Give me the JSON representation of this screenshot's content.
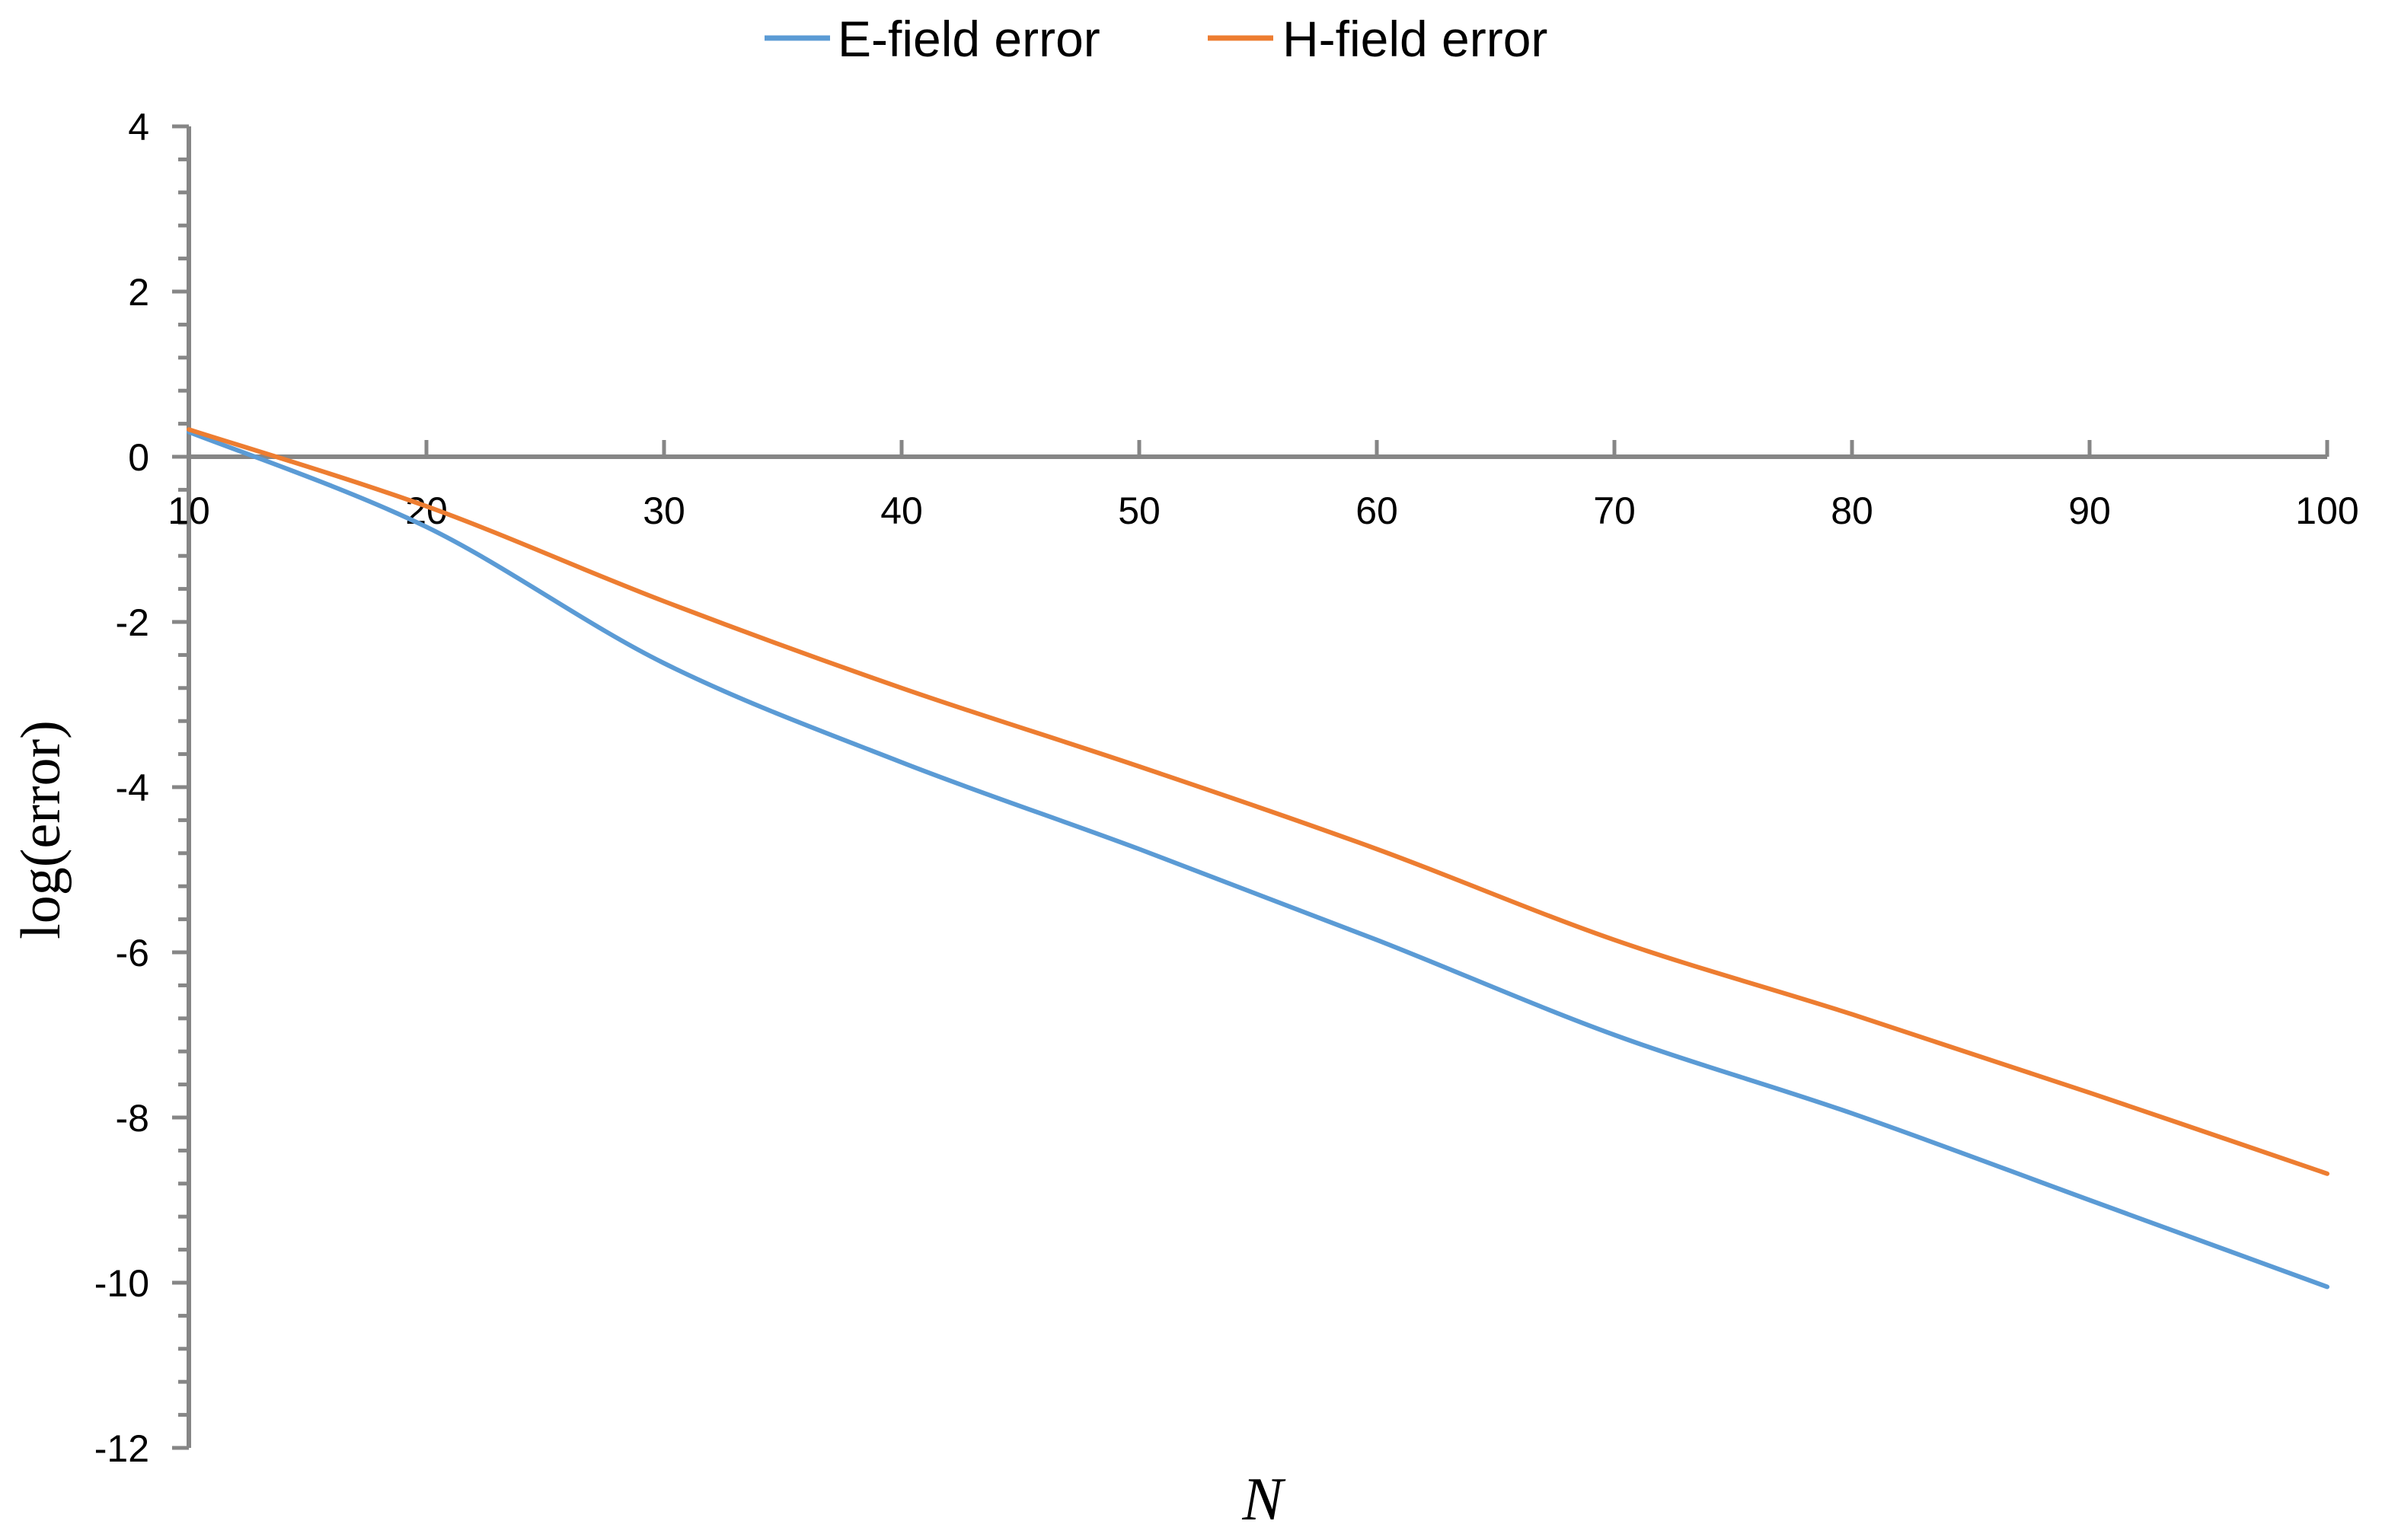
{
  "chart_data": {
    "type": "line",
    "xlabel": "N",
    "ylabel": "log(error)",
    "xlim": [
      10,
      100
    ],
    "ylim": [
      -12,
      4
    ],
    "x_ticks": [
      10,
      20,
      30,
      40,
      50,
      60,
      70,
      80,
      90,
      100
    ],
    "y_ticks": [
      4,
      2,
      0,
      -2,
      -4,
      -6,
      -8,
      -10,
      -12
    ],
    "legend_position": "top-center",
    "grid": false,
    "axis_color": "#868686",
    "series": [
      {
        "name": "E-field error",
        "color": "#5B9BD5",
        "x": [
          10,
          20,
          30,
          40,
          50,
          60,
          70,
          80,
          90,
          100
        ],
        "y": [
          0.3,
          -0.85,
          -2.5,
          -3.7,
          -4.75,
          -5.85,
          -7.0,
          -7.95,
          -9.0,
          -10.05
        ]
      },
      {
        "name": "H-field error",
        "color": "#ED7D31",
        "x": [
          10,
          20,
          30,
          40,
          50,
          60,
          70,
          80,
          90,
          100
        ],
        "y": [
          0.33,
          -0.6,
          -1.75,
          -2.8,
          -3.75,
          -4.75,
          -5.85,
          -6.75,
          -7.7,
          -8.68
        ]
      }
    ]
  }
}
